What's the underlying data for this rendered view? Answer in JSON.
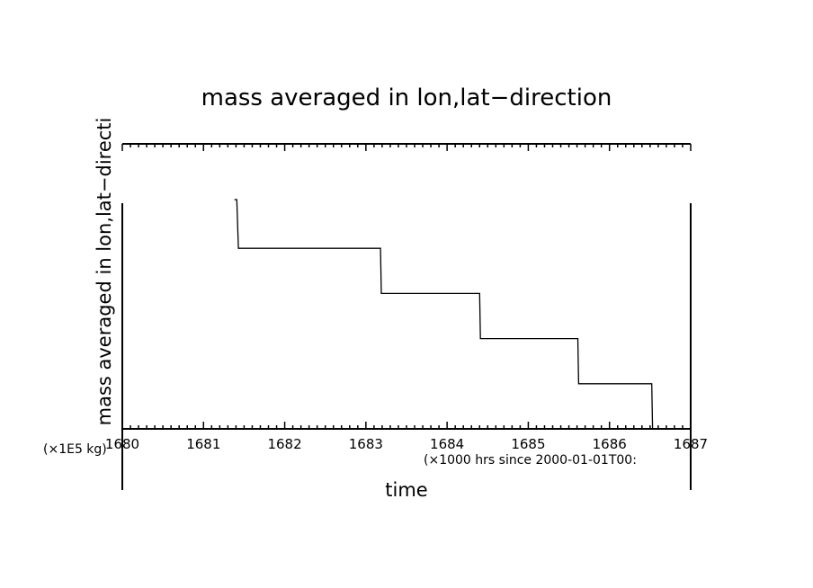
{
  "chart_data": {
    "type": "line",
    "title": "mass averaged in lon,lat−direction",
    "xlabel": "time",
    "ylabel": "mass averaged in lon,lat−directi",
    "x_unit_note": "(×1000 hrs  since 2000-01-01T00:",
    "y_unit_note": "(×1E5 kg)",
    "xlim": [
      1680,
      1687
    ],
    "ylim": [
      0,
      5
    ],
    "x_ticks": [
      1680,
      1681,
      1682,
      1683,
      1684,
      1685,
      1686,
      1687
    ],
    "x_tick_labels": [
      "1680",
      "1681",
      "1682",
      "1683",
      "1684",
      "1685",
      "1686",
      "1687"
    ],
    "grid": false,
    "series": [
      {
        "values_x": [
          1681.38,
          1681.41,
          1681.43,
          1683.18,
          1683.19,
          1684.4,
          1684.41,
          1685.61,
          1685.62,
          1686.52,
          1686.53
        ],
        "values_y": [
          5.08,
          5.08,
          4.0,
          4.0,
          3.0,
          3.0,
          2.0,
          2.0,
          1.0,
          1.0,
          0.0
        ]
      }
    ]
  }
}
